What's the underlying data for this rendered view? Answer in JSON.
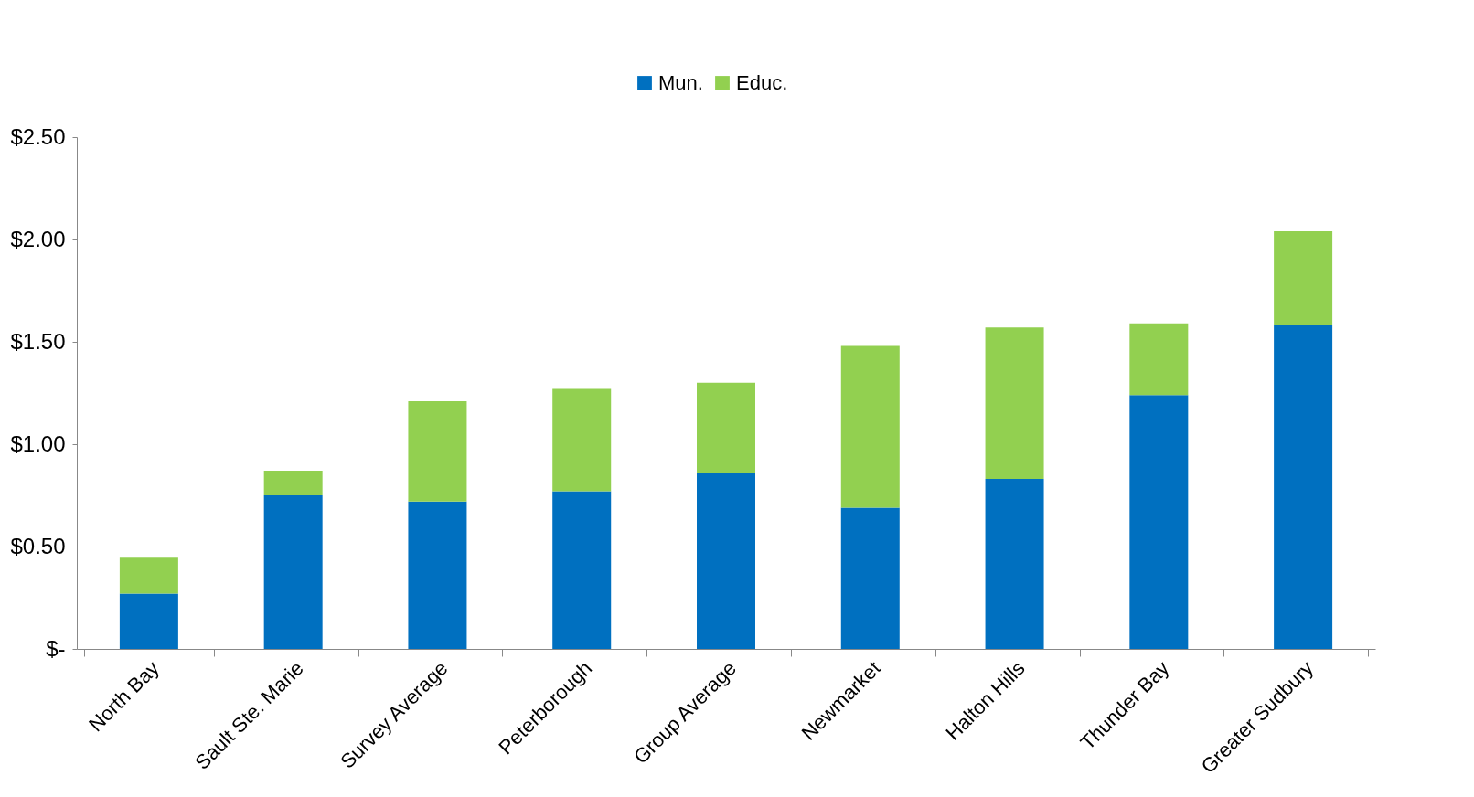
{
  "chart_data": {
    "type": "bar",
    "stacked": true,
    "legend": "top",
    "categories": [
      "North Bay",
      "Sault Ste. Marie",
      "Survey Average",
      "Peterborough",
      "Group Average",
      "Newmarket",
      "Halton Hills",
      "Thunder Bay",
      "Greater Sudbury"
    ],
    "series": [
      {
        "name": "Mun.",
        "color": "#0070c0",
        "values": [
          0.27,
          0.75,
          0.72,
          0.77,
          0.86,
          0.69,
          0.83,
          1.24,
          1.58
        ]
      },
      {
        "name": "Educ.",
        "color": "#92d050",
        "values": [
          0.18,
          0.12,
          0.49,
          0.5,
          0.44,
          0.79,
          0.74,
          0.35,
          0.46
        ]
      }
    ],
    "ylim": [
      0,
      2.5
    ],
    "yticks": [
      {
        "value": 0,
        "label": "$-"
      },
      {
        "value": 0.5,
        "label": "$0.50"
      },
      {
        "value": 1,
        "label": "$1.00"
      },
      {
        "value": 1.5,
        "label": "$1.50"
      },
      {
        "value": 2,
        "label": "$2.00"
      },
      {
        "value": 2.5,
        "label": "$2.50"
      }
    ],
    "grid": false
  }
}
